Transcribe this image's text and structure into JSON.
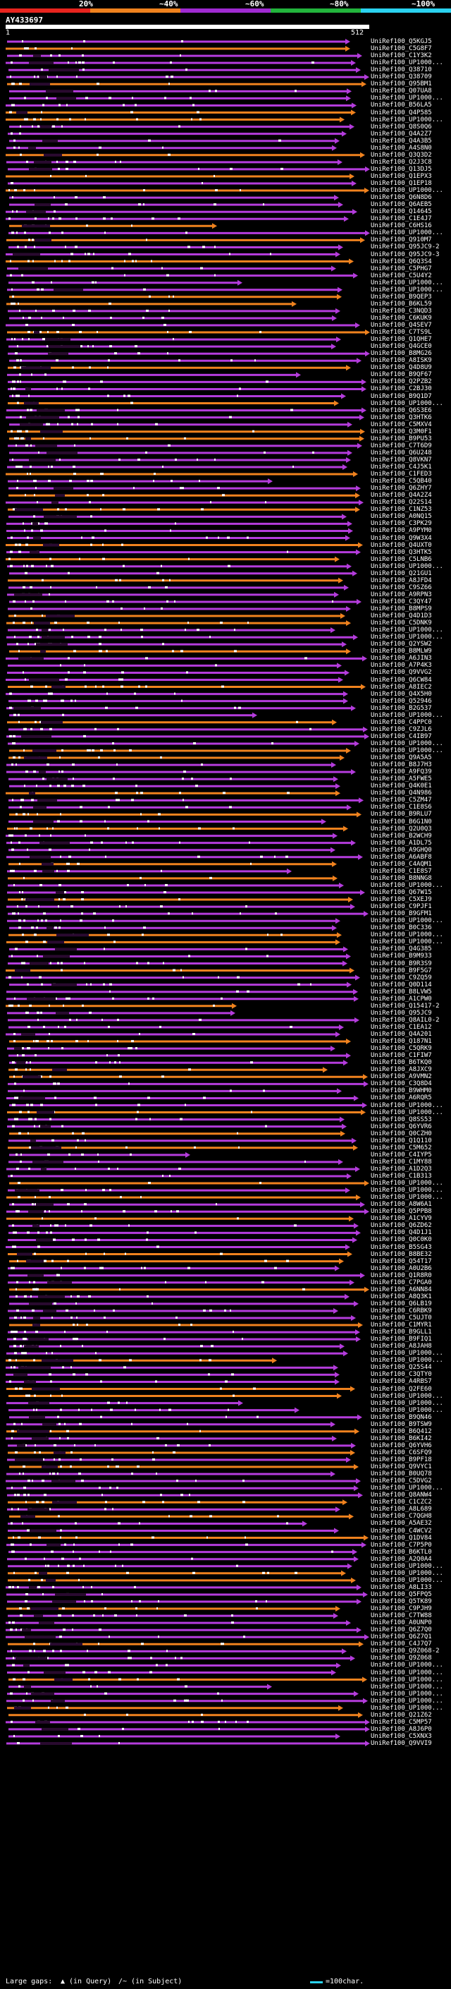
{
  "legend": {
    "labels": [
      "20%",
      "~40%",
      "~60%",
      "~80%",
      "~100%"
    ],
    "colors": [
      "#e8241e",
      "#f0821e",
      "#a02ad2",
      "#22b43c",
      "#2ad2f0"
    ]
  },
  "query": {
    "accession": "AY433697",
    "start": "1",
    "end": "512"
  },
  "hit_colors": {
    "purple": "#b43cdc",
    "orange": "#f0821e",
    "dot": "#ffffff"
  },
  "hits": [
    "UniRef100_Q5KGJ5",
    "UniRef100_C5G8F7",
    "UniRef100_C1Y3K2",
    "UniRef100_UP1000...",
    "UniRef100_Q38710",
    "UniRef100_Q38709",
    "UniRef100_Q95BM1",
    "UniRef100_Q07UA8",
    "UniRef100_UP1000...",
    "UniRef100_B56LA5",
    "UniRef100_Q4P585",
    "UniRef100_UP1000...",
    "UniRef100_Q8S0Q6",
    "UniRef100_Q4A2Z7",
    "UniRef100_Q4A3B5",
    "UniRef100_A4S8N0",
    "UniRef100_Q3Q3D2",
    "UniRef100_Q2J3C8",
    "UniRef100_Q13DJ5",
    "UniRef100_Q1EPX3",
    "UniRef100_Q1EP18",
    "UniRef100_UP1000...",
    "UniRef100_Q6N8D6",
    "UniRef100_Q6AEB5",
    "UniRef100_Q14645",
    "UniRef100_C1E4J7",
    "UniRef100_C6HS16",
    "UniRef100_UP1000...",
    "UniRef100_Q910M7",
    "UniRef100_Q95JC9-2",
    "UniRef100_Q95JC9-3",
    "UniRef100_Q6Q3S4",
    "UniRef100_C5PHG7",
    "UniRef100_C5U4Y2",
    "UniRef100_UP1000...",
    "UniRef100_UP1000...",
    "UniRef100_B9QEP3",
    "UniRef100_B6KL59",
    "UniRef100_C3NQD3",
    "UniRef100_C6KUK9",
    "UniRef100_Q4SEV7",
    "UniRef100_C7TS9L",
    "UniRef100_Q1QHE7",
    "UniRef100_Q4GCE0",
    "UniRef100_B8MG26",
    "UniRef100_A8ISK9",
    "UniRef100_Q4D8U9",
    "UniRef100_B9QF67",
    "UniRef100_Q2PZB2",
    "UniRef100_C2BJ30",
    "UniRef100_B9Q1D7",
    "UniRef100_UP1000...",
    "UniRef100_Q6S3E6",
    "UniRef100_Q3HTK6",
    "UniRef100_C5MXV4",
    "UniRef100_Q3M0F1",
    "UniRef100_B9PU53",
    "UniRef100_C7T6D9",
    "UniRef100_Q6U248",
    "UniRef100_Q8VKN7",
    "UniRef100_C4J5K1",
    "UniRef100_C1FED3",
    "UniRef100_C5QB40",
    "UniRef100_Q6ZHY7",
    "UniRef100_Q4A2Z4",
    "UniRef100_Q22S14",
    "UniRef100_C1NZ53",
    "UniRef100_A0NQ15",
    "UniRef100_C3PK29",
    "UniRef100_A9PYM0",
    "UniRef100_Q9W3X4",
    "UniRef100_Q4UXT0",
    "UniRef100_Q3HTK5",
    "UniRef100_C5LNB6",
    "UniRef100_UP1000...",
    "UniRef100_Q21GU1",
    "UniRef100_A8JFD4",
    "UniRef100_C9SZ66",
    "UniRef100_A9RPN3",
    "UniRef100_C3QY47",
    "UniRef100_B8MPS9",
    "UniRef100_Q4D1D3",
    "UniRef100_C5DNK9",
    "UniRef100_UP1000...",
    "UniRef100_UP1000...",
    "UniRef100_Q2YSW2",
    "UniRef100_B8MLW9",
    "UniRef100_A6JIN3",
    "UniRef100_A7P4K3",
    "UniRef100_Q9VVG2",
    "UniRef100_Q6CW84",
    "UniRef100_A8IEC2",
    "UniRef100_Q4X5H0",
    "UniRef100_Q52946",
    "UniRef100_B2G537",
    "UniRef100_UP1000...",
    "UniRef100_C4PPC0",
    "UniRef100_C9ZJL6",
    "UniRef100_C4IB97",
    "UniRef100_UP1000...",
    "UniRef100_UP1000...",
    "UniRef100_Q9A5A5",
    "UniRef100_B8J7H3",
    "UniRef100_A9FQ39",
    "UniRef100_A5FWE5",
    "UniRef100_Q4K0E1",
    "UniRef100_Q4N986",
    "UniRef100_C5ZM47",
    "UniRef100_C1E8S6",
    "UniRef100_B9RLU7",
    "UniRef100_B6G1N0",
    "UniRef100_Q2U0Q3",
    "UniRef100_B2WCH9",
    "UniRef100_A1DL75",
    "UniRef100_A9GHQ0",
    "UniRef100_A6ABF8",
    "UniRef100_C4AQM1",
    "UniRef100_C1E8S7",
    "UniRef100_B8NNG8",
    "UniRef100_UP1000...",
    "UniRef100_Q67W15",
    "UniRef100_C5XEJ9",
    "UniRef100_C9PJF1",
    "UniRef100_B9GFM1",
    "UniRef100_UP1000...",
    "UniRef100_B0C336",
    "UniRef100_UP1000...",
    "UniRef100_UP1000...",
    "UniRef100_Q4G385",
    "UniRef100_B9M933",
    "UniRef100_B9R3S9",
    "UniRef100_B9F5G7",
    "UniRef100_C9ZQ59",
    "UniRef100_Q0D114",
    "UniRef100_B8LVW5",
    "UniRef100_A1CPW0",
    "UniRef100_Q15417-2",
    "UniRef100_Q95JC9",
    "UniRef100_Q8AIL0-2",
    "UniRef100_C1EA12",
    "UniRef100_Q4A201",
    "UniRef100_Q187N1",
    "UniRef100_C5QRK9",
    "UniRef100_C1FIW7",
    "UniRef100_B6TKQ0",
    "UniRef100_A8JXC9",
    "UniRef100_A9VMN2",
    "UniRef100_C3Q8D4",
    "UniRef100_B9WHM0",
    "UniRef100_A6RQR5",
    "UniRef100_UP1000...",
    "UniRef100_UP1000...",
    "UniRef100_Q8SS53",
    "UniRef100_Q6YVR6",
    "UniRef100_Q0CZH0",
    "UniRef100_Q1Q110",
    "UniRef100_C5M652",
    "UniRef100_C4IYP5",
    "UniRef100_C1MY88",
    "UniRef100_A1D2Q3",
    "UniRef100_C1B313",
    "UniRef100_UP1000...",
    "UniRef100_UP1000...",
    "UniRef100_UP1000...",
    "UniRef100_A8W6A1",
    "UniRef100_Q5PPB8",
    "UniRef100_A1CYV9",
    "UniRef100_Q6ZD62",
    "UniRef100_Q4D1J1",
    "UniRef100_Q0C0K0",
    "UniRef100_B5SG43",
    "UniRef100_B8BE32",
    "UniRef100_Q54T17",
    "UniRef100_A0U2B6",
    "UniRef100_Q1R8R0",
    "UniRef100_C7PGA0",
    "UniRef100_A6NN84",
    "UniRef100_A8Q3K1",
    "UniRef100_Q6LB19",
    "UniRef100_C6RBK9",
    "UniRef100_C5UJT0",
    "UniRef100_C1MYR1",
    "UniRef100_B9GLL1",
    "UniRef100_B9FIQ1",
    "UniRef100_A8JAH8",
    "UniRef100_UP1000...",
    "UniRef100_UP1000...",
    "UniRef100_Q25S44",
    "UniRef100_C3QTY0",
    "UniRef100_A4RBS7",
    "UniRef100_Q2FE60",
    "UniRef100_UP1000...",
    "UniRef100_UP1000...",
    "UniRef100_UP1000...",
    "UniRef100_B9QN46",
    "UniRef100_B9TSW9",
    "UniRef100_B6Q412",
    "UniRef100_B6KI42",
    "UniRef100_Q6YVH6",
    "UniRef100_C6SFQ9",
    "UniRef100_B9PF18",
    "UniRef100_Q9VYC1",
    "UniRef100_B0UQ78",
    "UniRef100_C5DVG2",
    "UniRef100_UP1000...",
    "UniRef100_Q8ANW4",
    "UniRef100_C1CZC2",
    "UniRef100_A8L689",
    "UniRef100_C7QGH8",
    "UniRef100_A5AE32",
    "UniRef100_C4WCV2",
    "UniRef100_Q1DV84",
    "UniRef100_C7P5P0",
    "UniRef100_B6KTL0",
    "UniRef100_A2Q0A4",
    "UniRef100_UP1000...",
    "UniRef100_UP1000...",
    "UniRef100_UP1000...",
    "UniRef100_A8LI33",
    "UniRef100_Q5FPQ5",
    "UniRef100_Q5TK89",
    "UniRef100_C9PJH9",
    "UniRef100_C7TW88",
    "UniRef100_A0UNP0",
    "UniRef100_Q6Z7Q0",
    "UniRef100_Q6Z7Q1",
    "UniRef100_C4J7Q7",
    "UniRef100_Q9Z068-2",
    "UniRef100_Q9Z068",
    "UniRef100_UP1000...",
    "UniRef100_UP1000...",
    "UniRef100_UP1000...",
    "UniRef100_UP1000...",
    "UniRef100_UP1000...",
    "UniRef100_UP1000...",
    "UniRef100_UP1000...",
    "UniRef100_Q21Z62",
    "UniRef100_C5MP57",
    "UniRef100_A8J6P0",
    "UniRef100_C5XNX3",
    "UniRef100_Q9VVI9"
  ],
  "footer": {
    "large_gaps_label": "Large gaps:",
    "in_query_label": "(in Query)",
    "in_subject_label": "/~ (in Subject)",
    "scale_label": "=100char."
  }
}
